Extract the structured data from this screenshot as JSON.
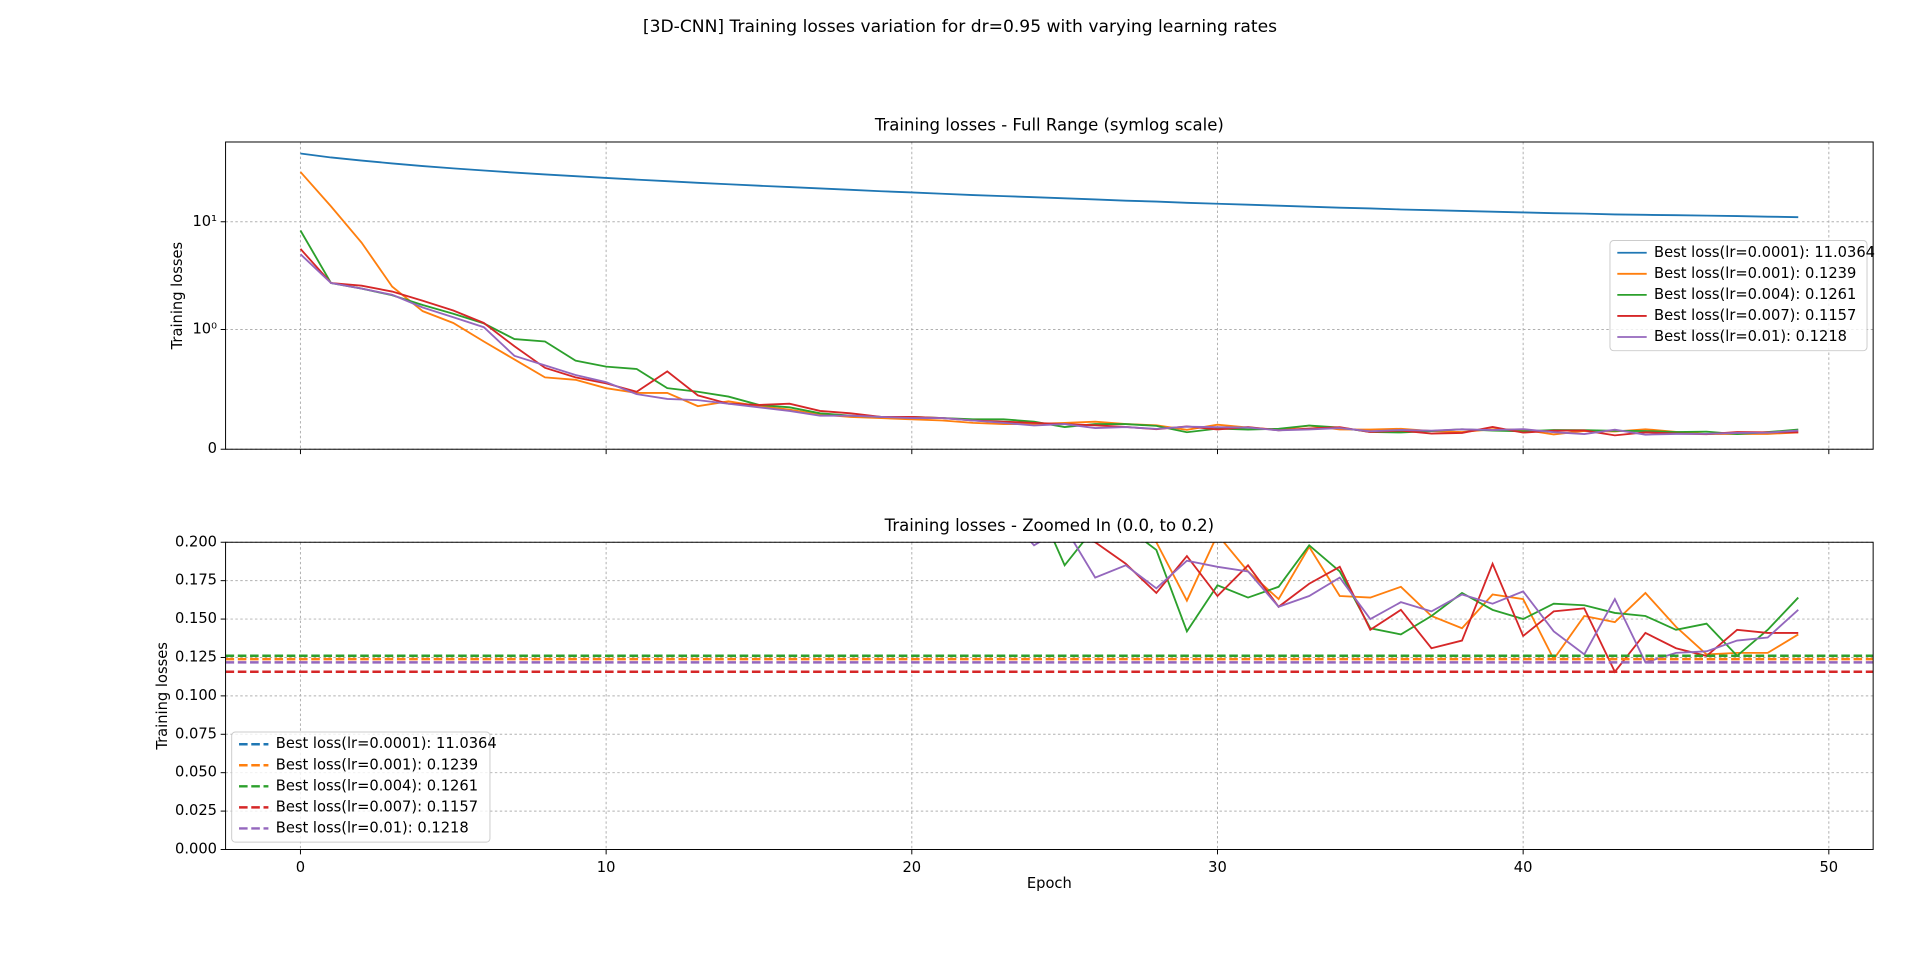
{
  "title": "[3D-CNN] Training losses variation for dr=0.95 with varying learning rates",
  "chart_data": [
    {
      "type": "line",
      "title": "Training losses - Full Range (symlog scale)",
      "ylabel": "Training losses",
      "yscale": "symlog",
      "grid": true,
      "legend": "center right",
      "ylim": [
        0,
        55
      ],
      "yticks": [
        0,
        {
          "value": 1,
          "label": "10⁰"
        },
        {
          "value": 10,
          "label": "10¹"
        }
      ],
      "x": [
        0,
        1,
        2,
        3,
        4,
        5,
        6,
        7,
        8,
        9,
        10,
        11,
        12,
        13,
        14,
        15,
        16,
        17,
        18,
        19,
        20,
        21,
        22,
        23,
        24,
        25,
        26,
        27,
        28,
        29,
        30,
        31,
        32,
        33,
        34,
        35,
        36,
        37,
        38,
        39,
        40,
        41,
        42,
        43,
        44,
        45,
        46,
        47,
        48,
        49
      ],
      "series": [
        {
          "name": "Best loss(lr=0.0001): 11.0364",
          "color": "#1f77b4",
          "values": [
            43.0,
            39.5,
            37.0,
            34.8,
            32.9,
            31.3,
            29.9,
            28.6,
            27.5,
            26.5,
            25.5,
            24.6,
            23.8,
            23.0,
            22.3,
            21.6,
            21.0,
            20.4,
            19.8,
            19.2,
            18.7,
            18.2,
            17.7,
            17.3,
            16.9,
            16.5,
            16.1,
            15.7,
            15.4,
            15.0,
            14.7,
            14.4,
            14.1,
            13.8,
            13.5,
            13.3,
            13.0,
            12.8,
            12.6,
            12.4,
            12.2,
            12.0,
            11.9,
            11.7,
            11.6,
            11.5,
            11.4,
            11.3,
            11.15,
            11.0364
          ]
        },
        {
          "name": "Best loss(lr=0.001): 0.1239",
          "color": "#ff7f0e",
          "values": [
            29,
            13.9,
            6.4,
            2.5,
            1.48,
            1.15,
            0.9,
            0.75,
            0.6,
            0.58,
            0.51,
            0.47,
            0.47,
            0.36,
            0.4,
            0.36,
            0.33,
            0.29,
            0.27,
            0.26,
            0.25,
            0.24,
            0.22,
            0.21,
            0.21,
            0.22,
            0.23,
            0.21,
            0.2,
            0.162,
            0.205,
            0.181,
            0.163,
            0.197,
            0.165,
            0.164,
            0.171,
            0.152,
            0.144,
            0.166,
            0.163,
            0.1239,
            0.152,
            0.148,
            0.167,
            0.145,
            0.127,
            0.128,
            0.128,
            0.14
          ]
        },
        {
          "name": "Best loss(lr=0.004): 0.1261",
          "color": "#2ca02c",
          "values": [
            8.3,
            2.7,
            2.4,
            2.08,
            1.69,
            1.4,
            1.14,
            0.92,
            0.9,
            0.74,
            0.69,
            0.67,
            0.51,
            0.48,
            0.44,
            0.37,
            0.35,
            0.3,
            0.28,
            0.27,
            0.27,
            0.26,
            0.25,
            0.25,
            0.23,
            0.185,
            0.21,
            0.21,
            0.195,
            0.142,
            0.172,
            0.164,
            0.171,
            0.198,
            0.181,
            0.144,
            0.14,
            0.152,
            0.167,
            0.156,
            0.15,
            0.16,
            0.159,
            0.154,
            0.152,
            0.143,
            0.147,
            0.1261,
            0.143,
            0.164
          ]
        },
        {
          "name": "Best loss(lr=0.007): 0.1157",
          "color": "#d62728",
          "values": [
            5.6,
            2.7,
            2.55,
            2.25,
            1.85,
            1.5,
            1.15,
            0.86,
            0.68,
            0.6,
            0.55,
            0.48,
            0.65,
            0.45,
            0.38,
            0.37,
            0.38,
            0.32,
            0.3,
            0.27,
            0.27,
            0.26,
            0.24,
            0.23,
            0.22,
            0.21,
            0.2,
            0.186,
            0.167,
            0.191,
            0.165,
            0.185,
            0.158,
            0.173,
            0.184,
            0.143,
            0.156,
            0.131,
            0.136,
            0.186,
            0.139,
            0.155,
            0.157,
            0.1157,
            0.141,
            0.131,
            0.126,
            0.143,
            0.141,
            0.141
          ]
        },
        {
          "name": "Best loss(lr=0.01): 0.1218",
          "color": "#9467bd",
          "values": [
            5.0,
            2.7,
            2.4,
            2.1,
            1.6,
            1.3,
            1.05,
            0.78,
            0.7,
            0.62,
            0.56,
            0.46,
            0.42,
            0.41,
            0.38,
            0.35,
            0.32,
            0.28,
            0.28,
            0.27,
            0.26,
            0.26,
            0.24,
            0.22,
            0.198,
            0.21,
            0.177,
            0.185,
            0.17,
            0.188,
            0.184,
            0.181,
            0.158,
            0.165,
            0.177,
            0.15,
            0.161,
            0.155,
            0.166,
            0.16,
            0.168,
            0.142,
            0.127,
            0.163,
            0.1218,
            0.128,
            0.129,
            0.136,
            0.138,
            0.156
          ]
        }
      ]
    },
    {
      "type": "line",
      "title": "Training losses - Zoomed In (0.0, to 0.2)",
      "ylabel": "Training losses",
      "xlabel": "Epoch",
      "grid": true,
      "legend": "lower left",
      "xlim": [
        -2.45,
        51.45
      ],
      "xticks": [
        0,
        10,
        20,
        30,
        40,
        50
      ],
      "ylim": [
        0,
        0.2
      ],
      "yticks": [
        {
          "value": 0,
          "label": "0.000"
        },
        {
          "value": 0.025,
          "label": "0.025"
        },
        {
          "value": 0.05,
          "label": "0.050"
        },
        {
          "value": 0.075,
          "label": "0.075"
        },
        {
          "value": 0.1,
          "label": "0.100"
        },
        {
          "value": 0.125,
          "label": "0.125"
        },
        {
          "value": 0.15,
          "label": "0.150"
        },
        {
          "value": 0.175,
          "label": "0.175"
        },
        {
          "value": 0.2,
          "label": "0.200"
        }
      ],
      "hlines": [
        {
          "value": 11.0364,
          "color": "#1f77b4"
        },
        {
          "value": 0.1239,
          "color": "#ff7f0e"
        },
        {
          "value": 0.1261,
          "color": "#2ca02c"
        },
        {
          "value": 0.1157,
          "color": "#d62728"
        },
        {
          "value": 0.1218,
          "color": "#9467bd"
        }
      ]
    }
  ]
}
